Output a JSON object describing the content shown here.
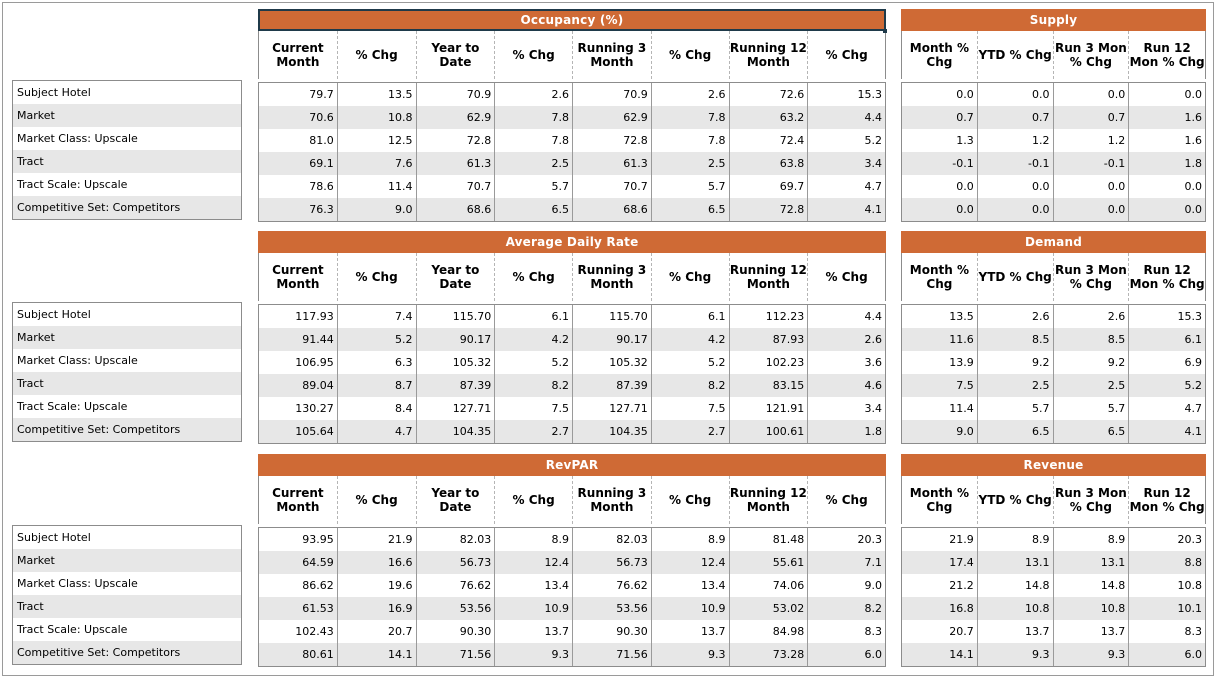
{
  "row_labels": [
    "Subject Hotel",
    "Market",
    "Market Class: Upscale",
    "Tract",
    "Tract Scale: Upscale",
    "Competitive Set: Competitors"
  ],
  "main_headers": [
    "Current Month",
    "% Chg",
    "Year to Date",
    "% Chg",
    "Running 3 Month",
    "% Chg",
    "Running 12 Month",
    "% Chg"
  ],
  "side_headers": [
    "Month % Chg",
    "YTD % Chg",
    "Run 3 Mon % Chg",
    "Run 12 Mon % Chg"
  ],
  "sections": [
    {
      "main_title": "Occupancy (%)",
      "side_title": "Supply",
      "main_rows": [
        [
          "79.7",
          "13.5",
          "70.9",
          "2.6",
          "70.9",
          "2.6",
          "72.6",
          "15.3"
        ],
        [
          "70.6",
          "10.8",
          "62.9",
          "7.8",
          "62.9",
          "7.8",
          "63.2",
          "4.4"
        ],
        [
          "81.0",
          "12.5",
          "72.8",
          "7.8",
          "72.8",
          "7.8",
          "72.4",
          "5.2"
        ],
        [
          "69.1",
          "7.6",
          "61.3",
          "2.5",
          "61.3",
          "2.5",
          "63.8",
          "3.4"
        ],
        [
          "78.6",
          "11.4",
          "70.7",
          "5.7",
          "70.7",
          "5.7",
          "69.7",
          "4.7"
        ],
        [
          "76.3",
          "9.0",
          "68.6",
          "6.5",
          "68.6",
          "6.5",
          "72.8",
          "4.1"
        ]
      ],
      "side_rows": [
        [
          "0.0",
          "0.0",
          "0.0",
          "0.0"
        ],
        [
          "0.7",
          "0.7",
          "0.7",
          "1.6"
        ],
        [
          "1.3",
          "1.2",
          "1.2",
          "1.6"
        ],
        [
          "-0.1",
          "-0.1",
          "-0.1",
          "1.8"
        ],
        [
          "0.0",
          "0.0",
          "0.0",
          "0.0"
        ],
        [
          "0.0",
          "0.0",
          "0.0",
          "0.0"
        ]
      ]
    },
    {
      "main_title": "Average Daily Rate",
      "side_title": "Demand",
      "main_rows": [
        [
          "117.93",
          "7.4",
          "115.70",
          "6.1",
          "115.70",
          "6.1",
          "112.23",
          "4.4"
        ],
        [
          "91.44",
          "5.2",
          "90.17",
          "4.2",
          "90.17",
          "4.2",
          "87.93",
          "2.6"
        ],
        [
          "106.95",
          "6.3",
          "105.32",
          "5.2",
          "105.32",
          "5.2",
          "102.23",
          "3.6"
        ],
        [
          "89.04",
          "8.7",
          "87.39",
          "8.2",
          "87.39",
          "8.2",
          "83.15",
          "4.6"
        ],
        [
          "130.27",
          "8.4",
          "127.71",
          "7.5",
          "127.71",
          "7.5",
          "121.91",
          "3.4"
        ],
        [
          "105.64",
          "4.7",
          "104.35",
          "2.7",
          "104.35",
          "2.7",
          "100.61",
          "1.8"
        ]
      ],
      "side_rows": [
        [
          "13.5",
          "2.6",
          "2.6",
          "15.3"
        ],
        [
          "11.6",
          "8.5",
          "8.5",
          "6.1"
        ],
        [
          "13.9",
          "9.2",
          "9.2",
          "6.9"
        ],
        [
          "7.5",
          "2.5",
          "2.5",
          "5.2"
        ],
        [
          "11.4",
          "5.7",
          "5.7",
          "4.7"
        ],
        [
          "9.0",
          "6.5",
          "6.5",
          "4.1"
        ]
      ]
    },
    {
      "main_title": "RevPAR",
      "side_title": "Revenue",
      "main_rows": [
        [
          "93.95",
          "21.9",
          "82.03",
          "8.9",
          "82.03",
          "8.9",
          "81.48",
          "20.3"
        ],
        [
          "64.59",
          "16.6",
          "56.73",
          "12.4",
          "56.73",
          "12.4",
          "55.61",
          "7.1"
        ],
        [
          "86.62",
          "19.6",
          "76.62",
          "13.4",
          "76.62",
          "13.4",
          "74.06",
          "9.0"
        ],
        [
          "61.53",
          "16.9",
          "53.56",
          "10.9",
          "53.56",
          "10.9",
          "53.02",
          "8.2"
        ],
        [
          "102.43",
          "20.7",
          "90.30",
          "13.7",
          "90.30",
          "13.7",
          "84.98",
          "8.3"
        ],
        [
          "80.61",
          "14.1",
          "71.56",
          "9.3",
          "71.56",
          "9.3",
          "73.28",
          "6.0"
        ]
      ],
      "side_rows": [
        [
          "21.9",
          "8.9",
          "8.9",
          "20.3"
        ],
        [
          "17.4",
          "13.1",
          "13.1",
          "8.8"
        ],
        [
          "21.2",
          "14.8",
          "14.8",
          "10.8"
        ],
        [
          "16.8",
          "10.8",
          "10.8",
          "10.1"
        ],
        [
          "20.7",
          "13.7",
          "13.7",
          "8.3"
        ],
        [
          "14.1",
          "9.3",
          "9.3",
          "6.0"
        ]
      ]
    }
  ]
}
